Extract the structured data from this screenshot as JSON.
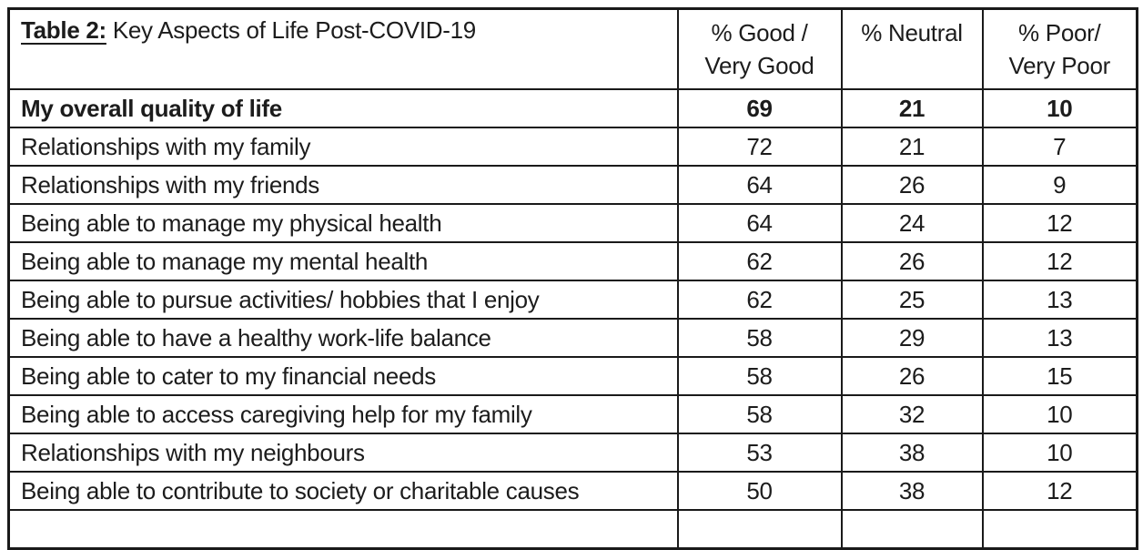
{
  "table": {
    "title": {
      "prefix": "Table 2:",
      "rest": " Key Aspects of Life Post-COVID-19"
    },
    "headers": {
      "good": {
        "line1": "% Good /",
        "line2": "Very Good"
      },
      "neutral": {
        "line1": "% Neutral",
        "line2": ""
      },
      "poor": {
        "line1": "% Poor/",
        "line2": "Very Poor"
      }
    },
    "rows": [
      {
        "label": "My overall quality of life",
        "good": "69",
        "neutral": "21",
        "poor": "10"
      },
      {
        "label": "Relationships with my family",
        "good": "72",
        "neutral": "21",
        "poor": "7"
      },
      {
        "label": "Relationships with my friends",
        "good": "64",
        "neutral": "26",
        "poor": "9"
      },
      {
        "label": "Being able to manage my physical health",
        "good": "64",
        "neutral": "24",
        "poor": "12"
      },
      {
        "label": "Being able to manage my mental health",
        "good": "62",
        "neutral": "26",
        "poor": "12"
      },
      {
        "label": "Being able to pursue activities/ hobbies that I enjoy",
        "good": "62",
        "neutral": "25",
        "poor": "13"
      },
      {
        "label": "Being able to have a healthy work-life balance",
        "good": "58",
        "neutral": "29",
        "poor": "13"
      },
      {
        "label": "Being able to cater to my financial needs",
        "good": "58",
        "neutral": "26",
        "poor": "15"
      },
      {
        "label": "Being able to access caregiving help for my family",
        "good": "58",
        "neutral": "32",
        "poor": "10"
      },
      {
        "label": "Relationships with my neighbours",
        "good": "53",
        "neutral": "38",
        "poor": "10"
      },
      {
        "label": "Being able to contribute to society or charitable causes",
        "good": "50",
        "neutral": "38",
        "poor": "12"
      }
    ],
    "colors": {
      "border": "#1a1a1a",
      "text": "#1c1c1c",
      "background": "#ffffff"
    }
  },
  "chart_data": {
    "type": "table",
    "title": "Table 2: Key Aspects of Life Post-COVID-19",
    "columns": [
      "Aspect",
      "% Good / Very Good",
      "% Neutral",
      "% Poor/ Very Poor"
    ],
    "rows": [
      [
        "My overall quality of life",
        69,
        21,
        10
      ],
      [
        "Relationships with my family",
        72,
        21,
        7
      ],
      [
        "Relationships with my friends",
        64,
        26,
        9
      ],
      [
        "Being able to manage my physical health",
        64,
        24,
        12
      ],
      [
        "Being able to manage my mental health",
        62,
        26,
        12
      ],
      [
        "Being able to pursue activities/ hobbies that I enjoy",
        62,
        25,
        13
      ],
      [
        "Being able to have a healthy work-life balance",
        58,
        29,
        13
      ],
      [
        "Being able to cater to my financial needs",
        58,
        26,
        15
      ],
      [
        "Being able to access caregiving help for my family",
        58,
        32,
        10
      ],
      [
        "Relationships with my neighbours",
        53,
        38,
        10
      ],
      [
        "Being able to contribute to society or charitable causes",
        50,
        38,
        12
      ]
    ]
  }
}
